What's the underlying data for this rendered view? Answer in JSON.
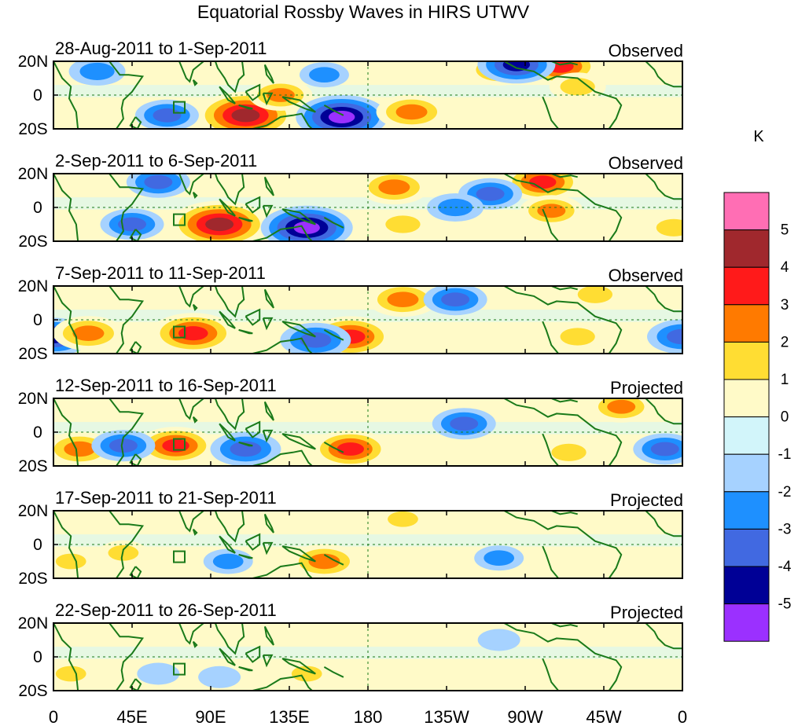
{
  "title": "Equatorial Rossby Waves in HIRS UTWV",
  "colorbar": {
    "unit": "K",
    "levels": [
      "5",
      "4",
      "3",
      "2",
      "1",
      "0",
      "-1",
      "-2",
      "-3",
      "-4",
      "-5"
    ],
    "colors": [
      "#ff6eb4",
      "#a0282d",
      "#ff1a1a",
      "#ff7a00",
      "#ffdd33",
      "#fffac8",
      "#d2f5fa",
      "#a6d2ff",
      "#1e90ff",
      "#4169e1",
      "#000096",
      "#9b30ff"
    ]
  },
  "chart_data": {
    "type": "heatmap",
    "title": "Equatorial Rossby Waves in HIRS UTWV",
    "x_ticks": [
      "0",
      "45E",
      "90E",
      "135E",
      "180",
      "135W",
      "90W",
      "45W",
      "0"
    ],
    "y_ticks": [
      "20N",
      "0",
      "20S"
    ],
    "lon_range": [
      0,
      360
    ],
    "lat_range": [
      -20,
      20
    ],
    "panels": [
      {
        "period": "28-Aug-2011 to 1-Sep-2011",
        "status": "Observed",
        "anomalies": [
          {
            "lon": 110,
            "lat": -12,
            "value": 5
          },
          {
            "lon": 130,
            "lat": 0,
            "value": 2.5
          },
          {
            "lon": 165,
            "lat": -13,
            "value": -4.5
          },
          {
            "lon": 205,
            "lat": -10,
            "value": 3
          },
          {
            "lon": 290,
            "lat": 17,
            "value": 3.5
          },
          {
            "lon": 255,
            "lat": 15,
            "value": 2.5
          },
          {
            "lon": 300,
            "lat": 5,
            "value": 2
          },
          {
            "lon": 265,
            "lat": 18,
            "value": -3.5
          },
          {
            "lon": 65,
            "lat": -12,
            "value": -2.5
          },
          {
            "lon": 25,
            "lat": 14,
            "value": -2
          },
          {
            "lon": 155,
            "lat": 12,
            "value": -1.5
          }
        ]
      },
      {
        "period": "2-Sep-2011 to 6-Sep-2011",
        "status": "Observed",
        "anomalies": [
          {
            "lon": 95,
            "lat": -10,
            "value": 5
          },
          {
            "lon": 145,
            "lat": -12,
            "value": -4.5
          },
          {
            "lon": 195,
            "lat": 12,
            "value": 3
          },
          {
            "lon": 280,
            "lat": 15,
            "value": 3.5
          },
          {
            "lon": 285,
            "lat": -2,
            "value": 2.5
          },
          {
            "lon": 200,
            "lat": -10,
            "value": 2
          },
          {
            "lon": 45,
            "lat": -10,
            "value": -2.5
          },
          {
            "lon": 250,
            "lat": 8,
            "value": -2.5
          },
          {
            "lon": 230,
            "lat": 0,
            "value": -2
          },
          {
            "lon": 60,
            "lat": 15,
            "value": -2.5
          },
          {
            "lon": 355,
            "lat": -12,
            "value": 2
          }
        ]
      },
      {
        "period": "7-Sep-2011 to 11-Sep-2011",
        "status": "Observed",
        "anomalies": [
          {
            "lon": 80,
            "lat": -8,
            "value": 4
          },
          {
            "lon": 170,
            "lat": -10,
            "value": 4
          },
          {
            "lon": 200,
            "lat": 12,
            "value": 3
          },
          {
            "lon": 0,
            "lat": -10,
            "value": -3.5
          },
          {
            "lon": 20,
            "lat": -8,
            "value": 3
          },
          {
            "lon": 150,
            "lat": -12,
            "value": -3
          },
          {
            "lon": 230,
            "lat": 12,
            "value": -2.5
          },
          {
            "lon": 300,
            "lat": -10,
            "value": 2
          },
          {
            "lon": 360,
            "lat": -10,
            "value": -3
          },
          {
            "lon": 310,
            "lat": 15,
            "value": 2
          }
        ]
      },
      {
        "period": "12-Sep-2011 to 16-Sep-2011",
        "status": "Projected",
        "anomalies": [
          {
            "lon": 70,
            "lat": -8,
            "value": 3.5
          },
          {
            "lon": 170,
            "lat": -10,
            "value": 3.5
          },
          {
            "lon": 15,
            "lat": -10,
            "value": 3
          },
          {
            "lon": 110,
            "lat": -10,
            "value": -3
          },
          {
            "lon": 40,
            "lat": -8,
            "value": -2.5
          },
          {
            "lon": 235,
            "lat": 5,
            "value": -2.5
          },
          {
            "lon": 350,
            "lat": -10,
            "value": -2.5
          },
          {
            "lon": 325,
            "lat": 15,
            "value": 2.5
          },
          {
            "lon": 295,
            "lat": -12,
            "value": 2
          }
        ]
      },
      {
        "period": "17-Sep-2011 to 21-Sep-2011",
        "status": "Projected",
        "anomalies": [
          {
            "lon": 155,
            "lat": -10,
            "value": 3
          },
          {
            "lon": 40,
            "lat": -5,
            "value": 1.5
          },
          {
            "lon": 100,
            "lat": -10,
            "value": -1.5
          },
          {
            "lon": 200,
            "lat": 15,
            "value": 1.5
          },
          {
            "lon": 255,
            "lat": -8,
            "value": -1.5
          },
          {
            "lon": 10,
            "lat": -10,
            "value": 1.5
          }
        ]
      },
      {
        "period": "22-Sep-2011 to 26-Sep-2011",
        "status": "Projected",
        "anomalies": [
          {
            "lon": 145,
            "lat": -10,
            "value": 1.5
          },
          {
            "lon": 10,
            "lat": -10,
            "value": 1.5
          },
          {
            "lon": 95,
            "lat": -12,
            "value": -1
          },
          {
            "lon": 255,
            "lat": 10,
            "value": -1
          },
          {
            "lon": 60,
            "lat": -10,
            "value": -1
          }
        ]
      }
    ]
  }
}
